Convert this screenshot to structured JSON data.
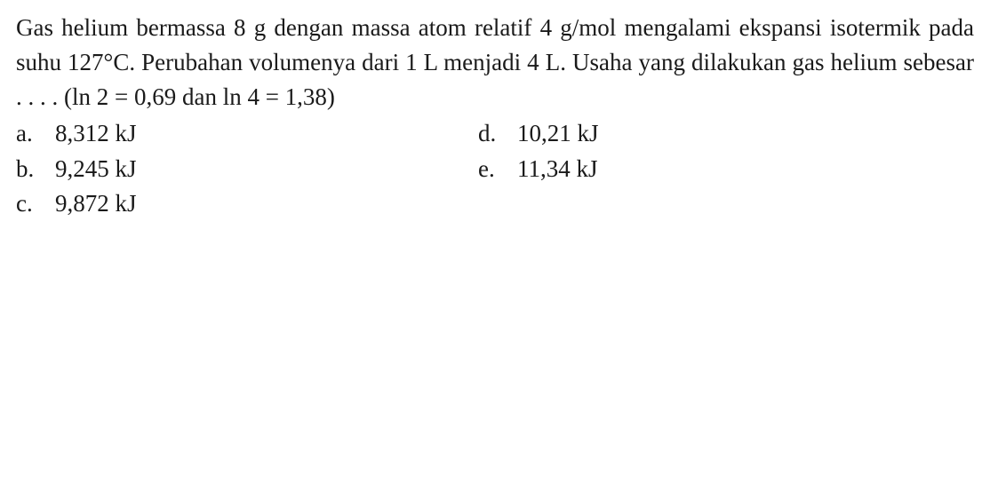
{
  "problem": {
    "text_parts": {
      "p1": "Gas helium bermassa 8 g dengan massa atom relatif 4 g/mol mengalami ekspansi isotermik pada suhu 127°C. Perubahan volumenya dari 1 L menjadi 4 L. Usaha yang dilakukan gas helium sebesar . . . . (ln 2 = 0,69 dan ln 4 = 1,38)"
    }
  },
  "options": {
    "a": {
      "letter": "a.",
      "value": "8,312 kJ"
    },
    "b": {
      "letter": "b.",
      "value": "9,245 kJ"
    },
    "c": {
      "letter": "c.",
      "value": "9,872 kJ"
    },
    "d": {
      "letter": "d.",
      "value": "10,21 kJ"
    },
    "e": {
      "letter": "e.",
      "value": "11,34 kJ"
    }
  },
  "style": {
    "font_family": "Times New Roman",
    "font_size_pt": 20,
    "text_color": "#1a1a1a",
    "background_color": "#ffffff",
    "line_height": 1.45
  }
}
